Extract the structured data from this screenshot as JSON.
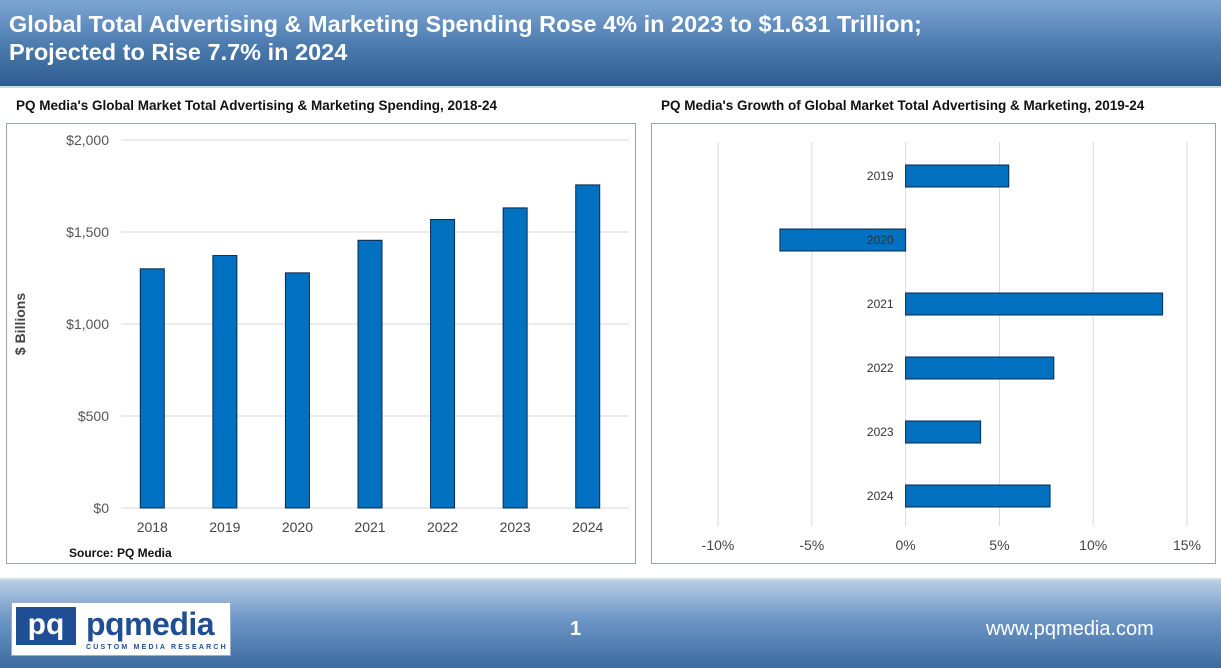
{
  "header": {
    "title_line1": "Global Total Advertising & Marketing Spending Rose 4% in 2023 to $1.631 Trillion;",
    "title_line2": "Projected to Rise 7.7% in 2024"
  },
  "footer": {
    "logo_mark": "pq",
    "logo_name": "pqmedia",
    "logo_tagline": "CUSTOM MEDIA RESEARCH",
    "page_number": "1",
    "url": "www.pqmedia.com"
  },
  "colors": {
    "bar": "#0070c0",
    "bar_stroke": "#0a2a4a",
    "grid": "#d9d9d9"
  },
  "chart_data": [
    {
      "type": "bar",
      "title": "PQ Media's Global Market Total Advertising & Marketing Spending, 2018-24",
      "ylabel": "$ Billions",
      "xlabel": "",
      "source": "Source: PQ Media",
      "categories": [
        "2018",
        "2019",
        "2020",
        "2021",
        "2022",
        "2023",
        "2024"
      ],
      "values": [
        1300,
        1372,
        1278,
        1455,
        1568,
        1631,
        1756
      ],
      "ylim": [
        0,
        2000
      ],
      "yticks": [
        0,
        500,
        1000,
        1500,
        2000
      ],
      "ytick_labels": [
        "$0",
        "$500",
        "$1,000",
        "$1,500",
        "$2,000"
      ],
      "grid": true
    },
    {
      "type": "bar",
      "orientation": "horizontal",
      "title": "PQ Media's Growth of Global Market Total Advertising & Marketing, 2019-24",
      "categories": [
        "2019",
        "2020",
        "2021",
        "2022",
        "2023",
        "2024"
      ],
      "values": [
        5.5,
        -6.7,
        13.7,
        7.9,
        4.0,
        7.7
      ],
      "xlim": [
        -10,
        15
      ],
      "xticks": [
        -10,
        -5,
        0,
        5,
        10,
        15
      ],
      "xtick_labels": [
        "-10%",
        "-5%",
        "0%",
        "5%",
        "10%",
        "15%"
      ],
      "grid": true
    }
  ]
}
